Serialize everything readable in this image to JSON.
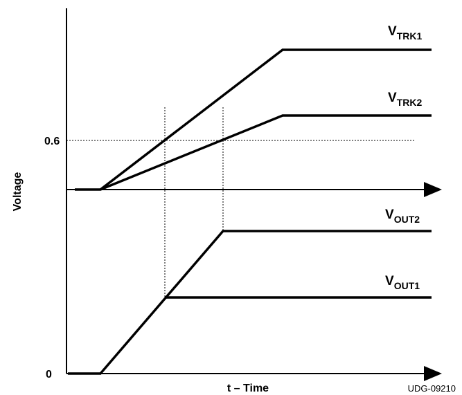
{
  "axes": {
    "ylabel": "Voltage",
    "xlabel": "t – Time",
    "tick_0": "0",
    "tick_06": "0.6"
  },
  "signals": {
    "vtrk1": {
      "main": "V",
      "sub": "TRK1"
    },
    "vtrk2": {
      "main": "V",
      "sub": "TRK2"
    },
    "vout2": {
      "main": "V",
      "sub": "OUT2"
    },
    "vout1": {
      "main": "V",
      "sub": "OUT1"
    }
  },
  "figure_id": "UDG-09210",
  "colors": {
    "ink": "#000000",
    "background": "#ffffff"
  }
}
